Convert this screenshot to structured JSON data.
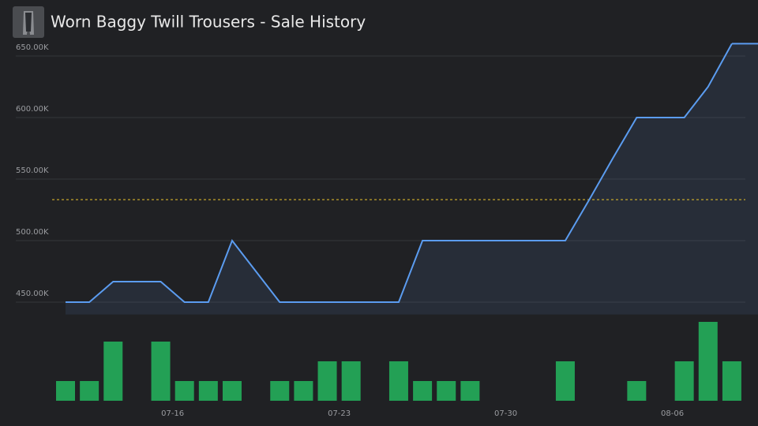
{
  "chart_data": {
    "type": "line",
    "title": "Worn Baggy Twill Trousers - Sale History",
    "categories": [
      null,
      null,
      null,
      null,
      null,
      "07-16",
      null,
      null,
      null,
      null,
      null,
      null,
      "07-23",
      null,
      null,
      null,
      null,
      null,
      null,
      "07-30",
      null,
      null,
      null,
      null,
      null,
      null,
      "08-06",
      null,
      null
    ],
    "values": [
      450000,
      450000,
      466700,
      466700,
      466700,
      450000,
      450000,
      500000,
      475000,
      450000,
      450000,
      450000,
      450000,
      450000,
      450000,
      500000,
      500000,
      500000,
      500000,
      500000,
      500000,
      500000,
      533000,
      567000,
      600000,
      600000,
      600000,
      625000,
      660000
    ],
    "color": "#5b9cf0",
    "ylim": [
      440000,
      665000
    ],
    "yticks": [
      {
        "value": 450000,
        "label": "450.00K"
      },
      {
        "value": 500000,
        "label": "500.00K"
      },
      {
        "value": 550000,
        "label": "550.00K"
      },
      {
        "value": 600000,
        "label": "600.00K"
      },
      {
        "value": 650000,
        "label": "650.00K"
      }
    ],
    "grid": true,
    "average": 533300,
    "average_color": "#d6b42a",
    "volume": {
      "type": "bar",
      "values": [
        1,
        1,
        3,
        0,
        3,
        1,
        1,
        1,
        0,
        1,
        1,
        2,
        2,
        0,
        2,
        1,
        1,
        1,
        0,
        0,
        0,
        2,
        0,
        0,
        1,
        0,
        2,
        4,
        2
      ],
      "color": "#23a055",
      "ylim": [
        0,
        4
      ]
    }
  }
}
